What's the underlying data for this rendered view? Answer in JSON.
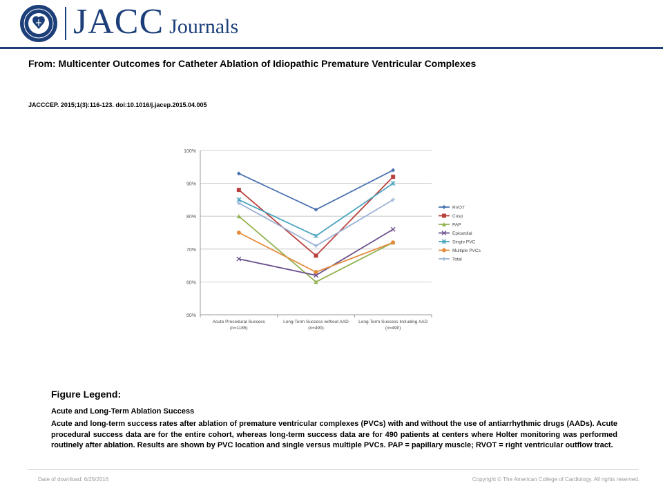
{
  "header": {
    "brand_main": "JACC",
    "brand_sub": "Journals",
    "logo_text": "AMERICAN COLLEGE of CARDIOLOGY"
  },
  "article": {
    "from": "From: Multicenter Outcomes for Catheter Ablation of Idiopathic Premature Ventricular Complexes",
    "citation": "JACCCEP. 2015;1(3):116-123. doi:10.1016/j.jacep.2015.04.005"
  },
  "chart_data": {
    "type": "line",
    "title": "",
    "xlabel": "",
    "ylabel": "",
    "ylim": [
      50,
      100
    ],
    "y_ticks": [
      "50%",
      "60%",
      "70%",
      "80%",
      "90%",
      "100%"
    ],
    "grid": true,
    "legend_position": "right",
    "categories": [
      [
        "Acute Procedural Success",
        "(n=1185)"
      ],
      [
        "Long-Term Success without AAD",
        "(n=490)"
      ],
      [
        "Long-Term Success Including AAD",
        "(n=490)"
      ]
    ],
    "series": [
      {
        "name": "RVOT",
        "values": [
          93,
          82,
          94
        ],
        "color": "#4a72b0",
        "marker": "diamond"
      },
      {
        "name": "Cusp",
        "values": [
          88,
          68,
          92
        ],
        "color": "#b9413d",
        "marker": "square"
      },
      {
        "name": "PAP",
        "values": [
          80,
          60,
          72
        ],
        "color": "#93b24f",
        "marker": "triangle"
      },
      {
        "name": "Epicardial",
        "values": [
          67,
          62,
          76
        ],
        "color": "#6a4e8c",
        "marker": "x"
      },
      {
        "name": "Single PVC",
        "values": [
          85,
          74,
          90
        ],
        "color": "#4aa3bf",
        "marker": "star"
      },
      {
        "name": "Multiple PVCs",
        "values": [
          75,
          63,
          72
        ],
        "color": "#e48c3c",
        "marker": "circle"
      },
      {
        "name": "Total",
        "values": [
          84,
          71,
          85
        ],
        "color": "#9cb2d6",
        "marker": "plus"
      }
    ]
  },
  "legend": {
    "heading": "Figure Legend:",
    "title": "Acute and Long-Term Ablation Success",
    "text": "Acute and long-term success rates after ablation of premature ventricular complexes (PVCs) with and without the use of antiarrhythmic drugs (AADs). Acute procedural success data are for the entire cohort, whereas long-term success data are for 490 patients at centers where Holter monitoring was performed routinely after ablation. Results are shown by PVC location and single versus multiple PVCs. PAP = papillary muscle; RVOT = right ventricular outflow tract."
  },
  "footer": {
    "date": "Date of download: 6/25/2016",
    "copyright": "Copyright © The American College of Cardiology. All rights reserved."
  }
}
